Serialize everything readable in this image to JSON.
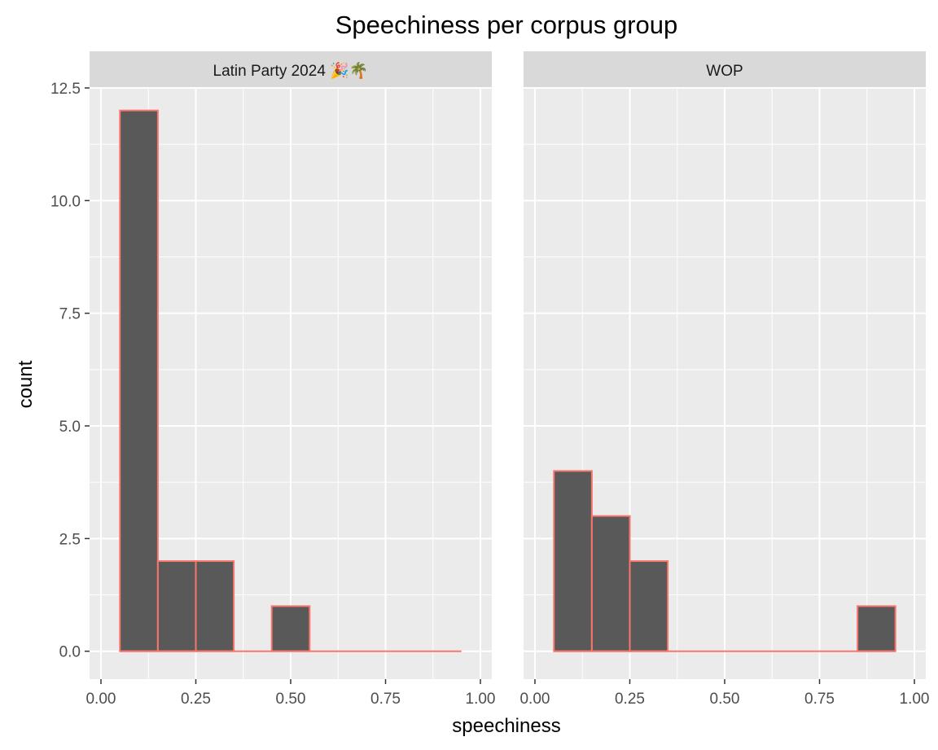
{
  "chart_data": {
    "type": "bar",
    "subtype": "histogram",
    "title": "Speechiness per corpus group",
    "xlabel": "speechiness",
    "ylabel": "count",
    "xlim": [
      -0.03,
      1.03
    ],
    "ylim": [
      -0.62,
      12.5
    ],
    "x_ticks": [
      0,
      0.25,
      0.5,
      0.75,
      1
    ],
    "x_tick_labels": [
      "0.00",
      "0.25",
      "0.50",
      "0.75",
      "1.00"
    ],
    "y_ticks": [
      0,
      2.5,
      5,
      7.5,
      10,
      12.5
    ],
    "y_tick_labels": [
      "0.0",
      "2.5",
      "5.0",
      "7.5",
      "10.0",
      "12.5"
    ],
    "grid": true,
    "bin_width": 0.1,
    "bar_fill": "#595959",
    "bar_outline": "#f8766d",
    "panel_background": "#ebebeb",
    "strip_background": "#d9d9d9",
    "facets": [
      {
        "label": "Latin Party 2024",
        "label_icons": "🎉🌴",
        "bin_centers": [
          0.1,
          0.2,
          0.3,
          0.4,
          0.5,
          0.6,
          0.7,
          0.8,
          0.9
        ],
        "counts": [
          12,
          2,
          2,
          0,
          1,
          0,
          0,
          0,
          0
        ]
      },
      {
        "label": "WOP",
        "label_icons": "",
        "bin_centers": [
          0.1,
          0.2,
          0.3,
          0.4,
          0.5,
          0.6,
          0.7,
          0.8,
          0.9
        ],
        "counts": [
          4,
          3,
          2,
          0,
          0,
          0,
          0,
          0,
          1
        ]
      }
    ]
  }
}
